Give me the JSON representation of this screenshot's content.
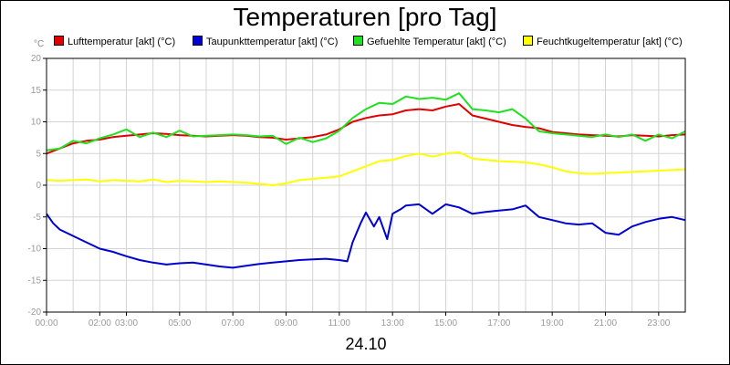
{
  "chart_data": {
    "type": "line",
    "title": "Temperaturen [pro Tag]",
    "ylabel": "°C",
    "xlabel": "24.10",
    "ylim": [
      -20,
      20
    ],
    "xlim": [
      0,
      24
    ],
    "y_ticks": [
      "20",
      "15",
      "10",
      "5",
      "0",
      "-5",
      "-10",
      "-15",
      "-20"
    ],
    "x_ticks": [
      "00:00",
      "02:00",
      "03:00",
      "05:00",
      "07:00",
      "09:00",
      "11:00",
      "13:00",
      "15:00",
      "17:00",
      "19:00",
      "21:00",
      "23:00"
    ],
    "legend_position": "top",
    "grid": true,
    "series": [
      {
        "name": "Lufttemperatur [akt] (°C)",
        "color": "#e00000",
        "x": [
          0,
          0.5,
          1,
          1.5,
          2,
          2.5,
          3,
          3.5,
          4,
          4.5,
          5,
          5.5,
          6,
          6.5,
          7,
          7.5,
          8,
          8.5,
          9,
          9.5,
          10,
          10.5,
          11,
          11.5,
          12,
          12.5,
          13,
          13.5,
          14,
          14.5,
          15,
          15.5,
          16,
          16.5,
          17,
          17.5,
          18,
          18.5,
          19,
          19.5,
          20,
          20.5,
          21,
          21.5,
          22,
          22.5,
          23,
          23.5,
          24
        ],
        "values": [
          5,
          5.8,
          6.6,
          7.0,
          7.2,
          7.6,
          7.8,
          8.0,
          8.2,
          8.1,
          7.9,
          7.8,
          7.7,
          7.8,
          7.9,
          7.8,
          7.6,
          7.5,
          7.2,
          7.4,
          7.6,
          8.0,
          8.8,
          10.0,
          10.6,
          11.0,
          11.2,
          11.8,
          12.0,
          11.8,
          12.4,
          12.8,
          11.0,
          10.5,
          10.0,
          9.5,
          9.2,
          9.0,
          8.4,
          8.2,
          8.0,
          7.9,
          7.8,
          7.7,
          7.9,
          7.8,
          7.7,
          7.9,
          8.0
        ]
      },
      {
        "name": "Taupunkttemperatur [akt] (°C)",
        "color": "#0000d0",
        "x": [
          0,
          0.25,
          0.5,
          1,
          1.5,
          2,
          2.5,
          3,
          3.5,
          4,
          4.5,
          5,
          5.5,
          6,
          6.5,
          7,
          7.5,
          8,
          8.5,
          9,
          9.5,
          10,
          10.5,
          11,
          11.3,
          11.5,
          11.8,
          12,
          12.3,
          12.5,
          12.8,
          13,
          13.3,
          13.5,
          14,
          14.5,
          15,
          15.5,
          16,
          16.5,
          17,
          17.5,
          18,
          18.5,
          19,
          19.5,
          20,
          20.5,
          21,
          21.5,
          22,
          22.5,
          23,
          23.5,
          24
        ],
        "values": [
          -4.5,
          -6,
          -7,
          -8,
          -9,
          -10,
          -10.5,
          -11.2,
          -11.8,
          -12.2,
          -12.5,
          -12.3,
          -12.2,
          -12.5,
          -12.8,
          -13,
          -12.7,
          -12.4,
          -12.2,
          -12.0,
          -11.8,
          -11.7,
          -11.6,
          -11.8,
          -12.0,
          -9.0,
          -6.0,
          -4.3,
          -6.5,
          -5.0,
          -8.5,
          -4.5,
          -3.8,
          -3.2,
          -3.0,
          -4.5,
          -3.0,
          -3.5,
          -4.5,
          -4.2,
          -4.0,
          -3.8,
          -3.2,
          -5.0,
          -5.5,
          -6.0,
          -6.2,
          -6.0,
          -7.5,
          -7.8,
          -6.5,
          -5.8,
          -5.3,
          -5.0,
          -5.5
        ]
      },
      {
        "name": "Gefuehlte Temperatur [akt] (°C)",
        "color": "#20e020",
        "x": [
          0,
          0.5,
          1,
          1.5,
          2,
          2.5,
          3,
          3.5,
          4,
          4.5,
          5,
          5.5,
          6,
          6.5,
          7,
          7.5,
          8,
          8.5,
          9,
          9.5,
          10,
          10.5,
          11,
          11.5,
          12,
          12.5,
          13,
          13.5,
          14,
          14.5,
          15,
          15.5,
          16,
          16.5,
          17,
          17.5,
          18,
          18.5,
          19,
          19.5,
          20,
          20.5,
          21,
          21.5,
          22,
          22.5,
          23,
          23.5,
          24
        ],
        "values": [
          5.5,
          5.8,
          7.0,
          6.6,
          7.4,
          8.0,
          8.8,
          7.6,
          8.3,
          7.6,
          8.6,
          7.7,
          7.8,
          7.9,
          8.0,
          7.9,
          7.7,
          7.8,
          6.5,
          7.5,
          6.8,
          7.4,
          8.6,
          10.6,
          12.0,
          13.0,
          12.8,
          14.0,
          13.6,
          13.8,
          13.5,
          14.5,
          12.0,
          11.8,
          11.5,
          12.0,
          10.5,
          8.5,
          8.2,
          8.0,
          7.8,
          7.6,
          8.0,
          7.6,
          8.0,
          7.0,
          8.0,
          7.4,
          8.5
        ]
      },
      {
        "name": "Feuchtkugeltemperatur [akt] (°C)",
        "color": "#ffff00",
        "x": [
          0,
          0.5,
          1,
          1.5,
          2,
          2.5,
          3,
          3.5,
          4,
          4.5,
          5,
          5.5,
          6,
          6.5,
          7,
          7.5,
          8,
          8.5,
          9,
          9.5,
          10,
          10.5,
          11,
          11.5,
          12,
          12.5,
          13,
          13.5,
          14,
          14.5,
          15,
          15.5,
          16,
          16.5,
          17,
          17.5,
          18,
          18.5,
          19,
          19.5,
          20,
          20.5,
          21,
          21.5,
          22,
          22.5,
          23,
          23.5,
          24
        ],
        "values": [
          0.8,
          0.7,
          0.8,
          0.9,
          0.6,
          0.8,
          0.7,
          0.6,
          0.9,
          0.5,
          0.7,
          0.6,
          0.5,
          0.6,
          0.5,
          0.4,
          0.2,
          0.0,
          0.3,
          0.8,
          1.0,
          1.2,
          1.4,
          2.2,
          3.0,
          3.8,
          4.0,
          4.6,
          5.0,
          4.5,
          5.0,
          5.2,
          4.2,
          4.0,
          3.8,
          3.7,
          3.6,
          3.3,
          2.8,
          2.2,
          1.9,
          1.8,
          1.9,
          2.0,
          2.1,
          2.2,
          2.3,
          2.4,
          2.5
        ]
      }
    ]
  }
}
